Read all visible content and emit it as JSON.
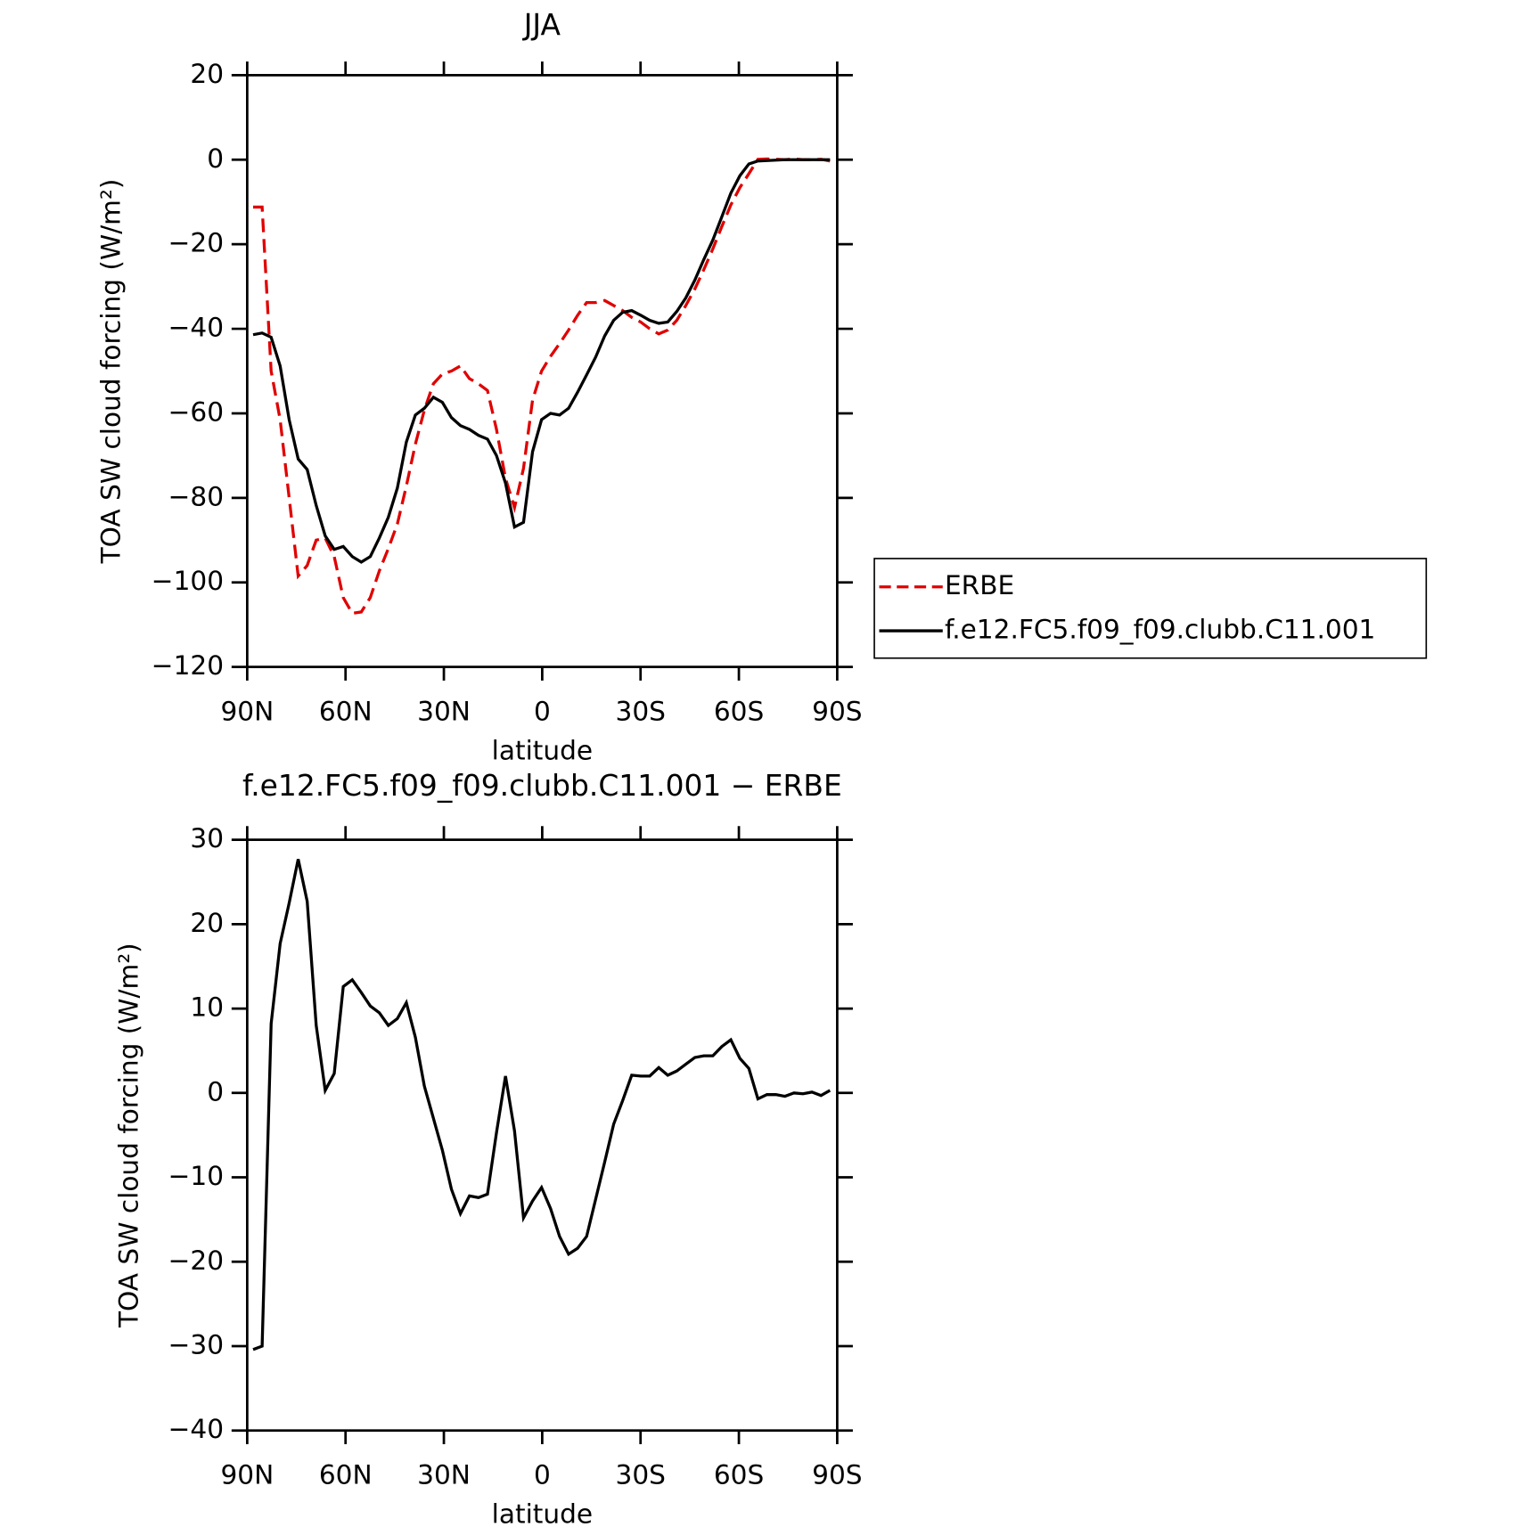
{
  "chart_data": [
    {
      "type": "line",
      "title": "JJA",
      "xlabel": "latitude",
      "ylabel": "TOA SW cloud forcing (W/m²)",
      "x": [
        88.2,
        85.45,
        82.7,
        79.95,
        77.2,
        74.45,
        71.7,
        68.95,
        66.2,
        63.45,
        60.7,
        57.95,
        55.2,
        52.45,
        49.7,
        46.95,
        44.2,
        41.45,
        38.7,
        35.95,
        33.2,
        30.45,
        27.7,
        24.95,
        22.2,
        19.45,
        16.7,
        13.95,
        11.2,
        8.45,
        5.7,
        2.95,
        0.2,
        -2.55,
        -5.3,
        -8.05,
        -10.8,
        -13.55,
        -16.3,
        -19.05,
        -21.8,
        -24.55,
        -27.3,
        -30.05,
        -32.8,
        -35.55,
        -38.3,
        -41.05,
        -43.8,
        -46.55,
        -49.3,
        -52.05,
        -54.8,
        -57.55,
        -60.3,
        -63.05,
        -65.8,
        -68.55,
        -71.3,
        -74.05,
        -76.8,
        -79.55,
        -82.3,
        -85.05,
        -87.8
      ],
      "series": [
        {
          "name": "ERBE",
          "color": "#e00000",
          "line_style": "dashed",
          "values": [
            -11.2,
            -11.2,
            -50,
            -61.5,
            -80,
            -98.5,
            -96,
            -90,
            -89.5,
            -93.9,
            -103.6,
            -107.3,
            -107,
            -103.6,
            -97.3,
            -92,
            -86.2,
            -77.2,
            -67.3,
            -59.2,
            -53,
            -50.7,
            -50,
            -48.8,
            -51.8,
            -53,
            -54.6,
            -63.8,
            -75.4,
            -82.3,
            -73,
            -56.9,
            -50,
            -46.5,
            -43.5,
            -40.3,
            -36.8,
            -33.8,
            -33.8,
            -33.3,
            -34.5,
            -35.7,
            -37.3,
            -38.4,
            -40,
            -41.2,
            -40.3,
            -38,
            -34.5,
            -30.6,
            -26,
            -21.1,
            -15.8,
            -10.7,
            -6.6,
            -3.3,
            0.1,
            0.2,
            0.1,
            0,
            0.2,
            0,
            0,
            0.1,
            -0.3
          ]
        },
        {
          "name": "f.e12.FC5.f09_f09.clubb.C11.001",
          "color": "#000000",
          "line_style": "solid",
          "values": [
            -41.4,
            -41,
            -42,
            -48.8,
            -61.5,
            -70.8,
            -73.3,
            -81.8,
            -89,
            -92.2,
            -91.5,
            -93.9,
            -95.2,
            -93.9,
            -89.5,
            -84.6,
            -77.7,
            -66.8,
            -60.4,
            -58.8,
            -56.2,
            -57.4,
            -61,
            -62.9,
            -63.8,
            -65.2,
            -66.1,
            -70,
            -76.5,
            -86.9,
            -85.8,
            -69.1,
            -61.5,
            -60,
            -60.4,
            -58.8,
            -55,
            -50.9,
            -46.7,
            -41.7,
            -38,
            -36.1,
            -35.7,
            -36.8,
            -38,
            -38.7,
            -38.4,
            -35.9,
            -32.7,
            -28.5,
            -23.6,
            -19,
            -13.5,
            -7.9,
            -3.8,
            -1,
            -0.3,
            -0.2,
            -0.1,
            0,
            0,
            0,
            0,
            0,
            0
          ]
        }
      ],
      "xlim": [
        90,
        -90
      ],
      "xticks": [
        {
          "value": 90,
          "label": "90N"
        },
        {
          "value": 60,
          "label": "60N"
        },
        {
          "value": 30,
          "label": "30N"
        },
        0,
        {
          "value": -30,
          "label": "30S"
        },
        {
          "value": -60,
          "label": "60S"
        },
        {
          "value": -90,
          "label": "90S"
        }
      ],
      "ylim": [
        -120,
        20
      ],
      "yticks": [
        {
          "value": -120,
          "label": "−120"
        },
        {
          "value": -100,
          "label": "−100"
        },
        {
          "value": -80,
          "label": "−80"
        },
        {
          "value": -60,
          "label": "−60"
        },
        {
          "value": -40,
          "label": "−40"
        },
        {
          "value": -20,
          "label": "−20"
        },
        0,
        20
      ],
      "legend": "right"
    },
    {
      "type": "line",
      "title": "f.e12.FC5.f09_f09.clubb.C11.001 − ERBE",
      "xlabel": "latitude",
      "ylabel": "TOA SW cloud forcing (W/m²)",
      "x": [
        88.2,
        85.45,
        82.7,
        79.95,
        77.2,
        74.45,
        71.7,
        68.95,
        66.2,
        63.45,
        60.7,
        57.95,
        55.2,
        52.45,
        49.7,
        46.95,
        44.2,
        41.45,
        38.7,
        35.95,
        33.2,
        30.45,
        27.7,
        24.95,
        22.2,
        19.45,
        16.7,
        13.95,
        11.2,
        8.45,
        5.7,
        2.95,
        0.2,
        -2.55,
        -5.3,
        -8.05,
        -10.8,
        -13.55,
        -16.3,
        -19.05,
        -21.8,
        -24.55,
        -27.3,
        -30.05,
        -32.8,
        -35.55,
        -38.3,
        -41.05,
        -43.8,
        -46.55,
        -49.3,
        -52.05,
        -54.8,
        -57.55,
        -60.3,
        -63.05,
        -65.8,
        -68.55,
        -71.3,
        -74.05,
        -76.8,
        -79.55,
        -82.3,
        -85.05,
        -87.8
      ],
      "series": [
        {
          "color": "#000000",
          "line_style": "solid",
          "values": [
            -30.4,
            -30,
            8.2,
            17.7,
            22.5,
            27.7,
            22.7,
            8,
            0.3,
            2.3,
            12.6,
            13.4,
            11.9,
            10.3,
            9.5,
            8,
            8.8,
            10.7,
            6.6,
            0.8,
            -3,
            -6.8,
            -11.4,
            -14.3,
            -12.2,
            -12.4,
            -12,
            -4.7,
            2,
            -4.5,
            -14.8,
            -12.8,
            -11.2,
            -13.7,
            -17,
            -19.1,
            -18.4,
            -17,
            -12.6,
            -8.2,
            -3.7,
            -0.9,
            2.1,
            2,
            2,
            3,
            2.1,
            2.6,
            3.4,
            4.2,
            4.4,
            4.4,
            5.5,
            6.3,
            4.1,
            2.9,
            -0.7,
            -0.2,
            -0.2,
            -0.4,
            0,
            -0.1,
            0.1,
            -0.3,
            0.3
          ]
        }
      ],
      "xlim": [
        90,
        -90
      ],
      "xticks": [
        {
          "value": 90,
          "label": "90N"
        },
        {
          "value": 60,
          "label": "60N"
        },
        {
          "value": 30,
          "label": "30N"
        },
        0,
        {
          "value": -30,
          "label": "30S"
        },
        {
          "value": -60,
          "label": "60S"
        },
        {
          "value": -90,
          "label": "90S"
        }
      ],
      "ylim": [
        -40,
        30
      ],
      "yticks": [
        {
          "value": -40,
          "label": "−40"
        },
        {
          "value": -30,
          "label": "−30"
        },
        {
          "value": -20,
          "label": "−20"
        },
        {
          "value": -10,
          "label": "−10"
        },
        0,
        10,
        20,
        30
      ]
    }
  ]
}
